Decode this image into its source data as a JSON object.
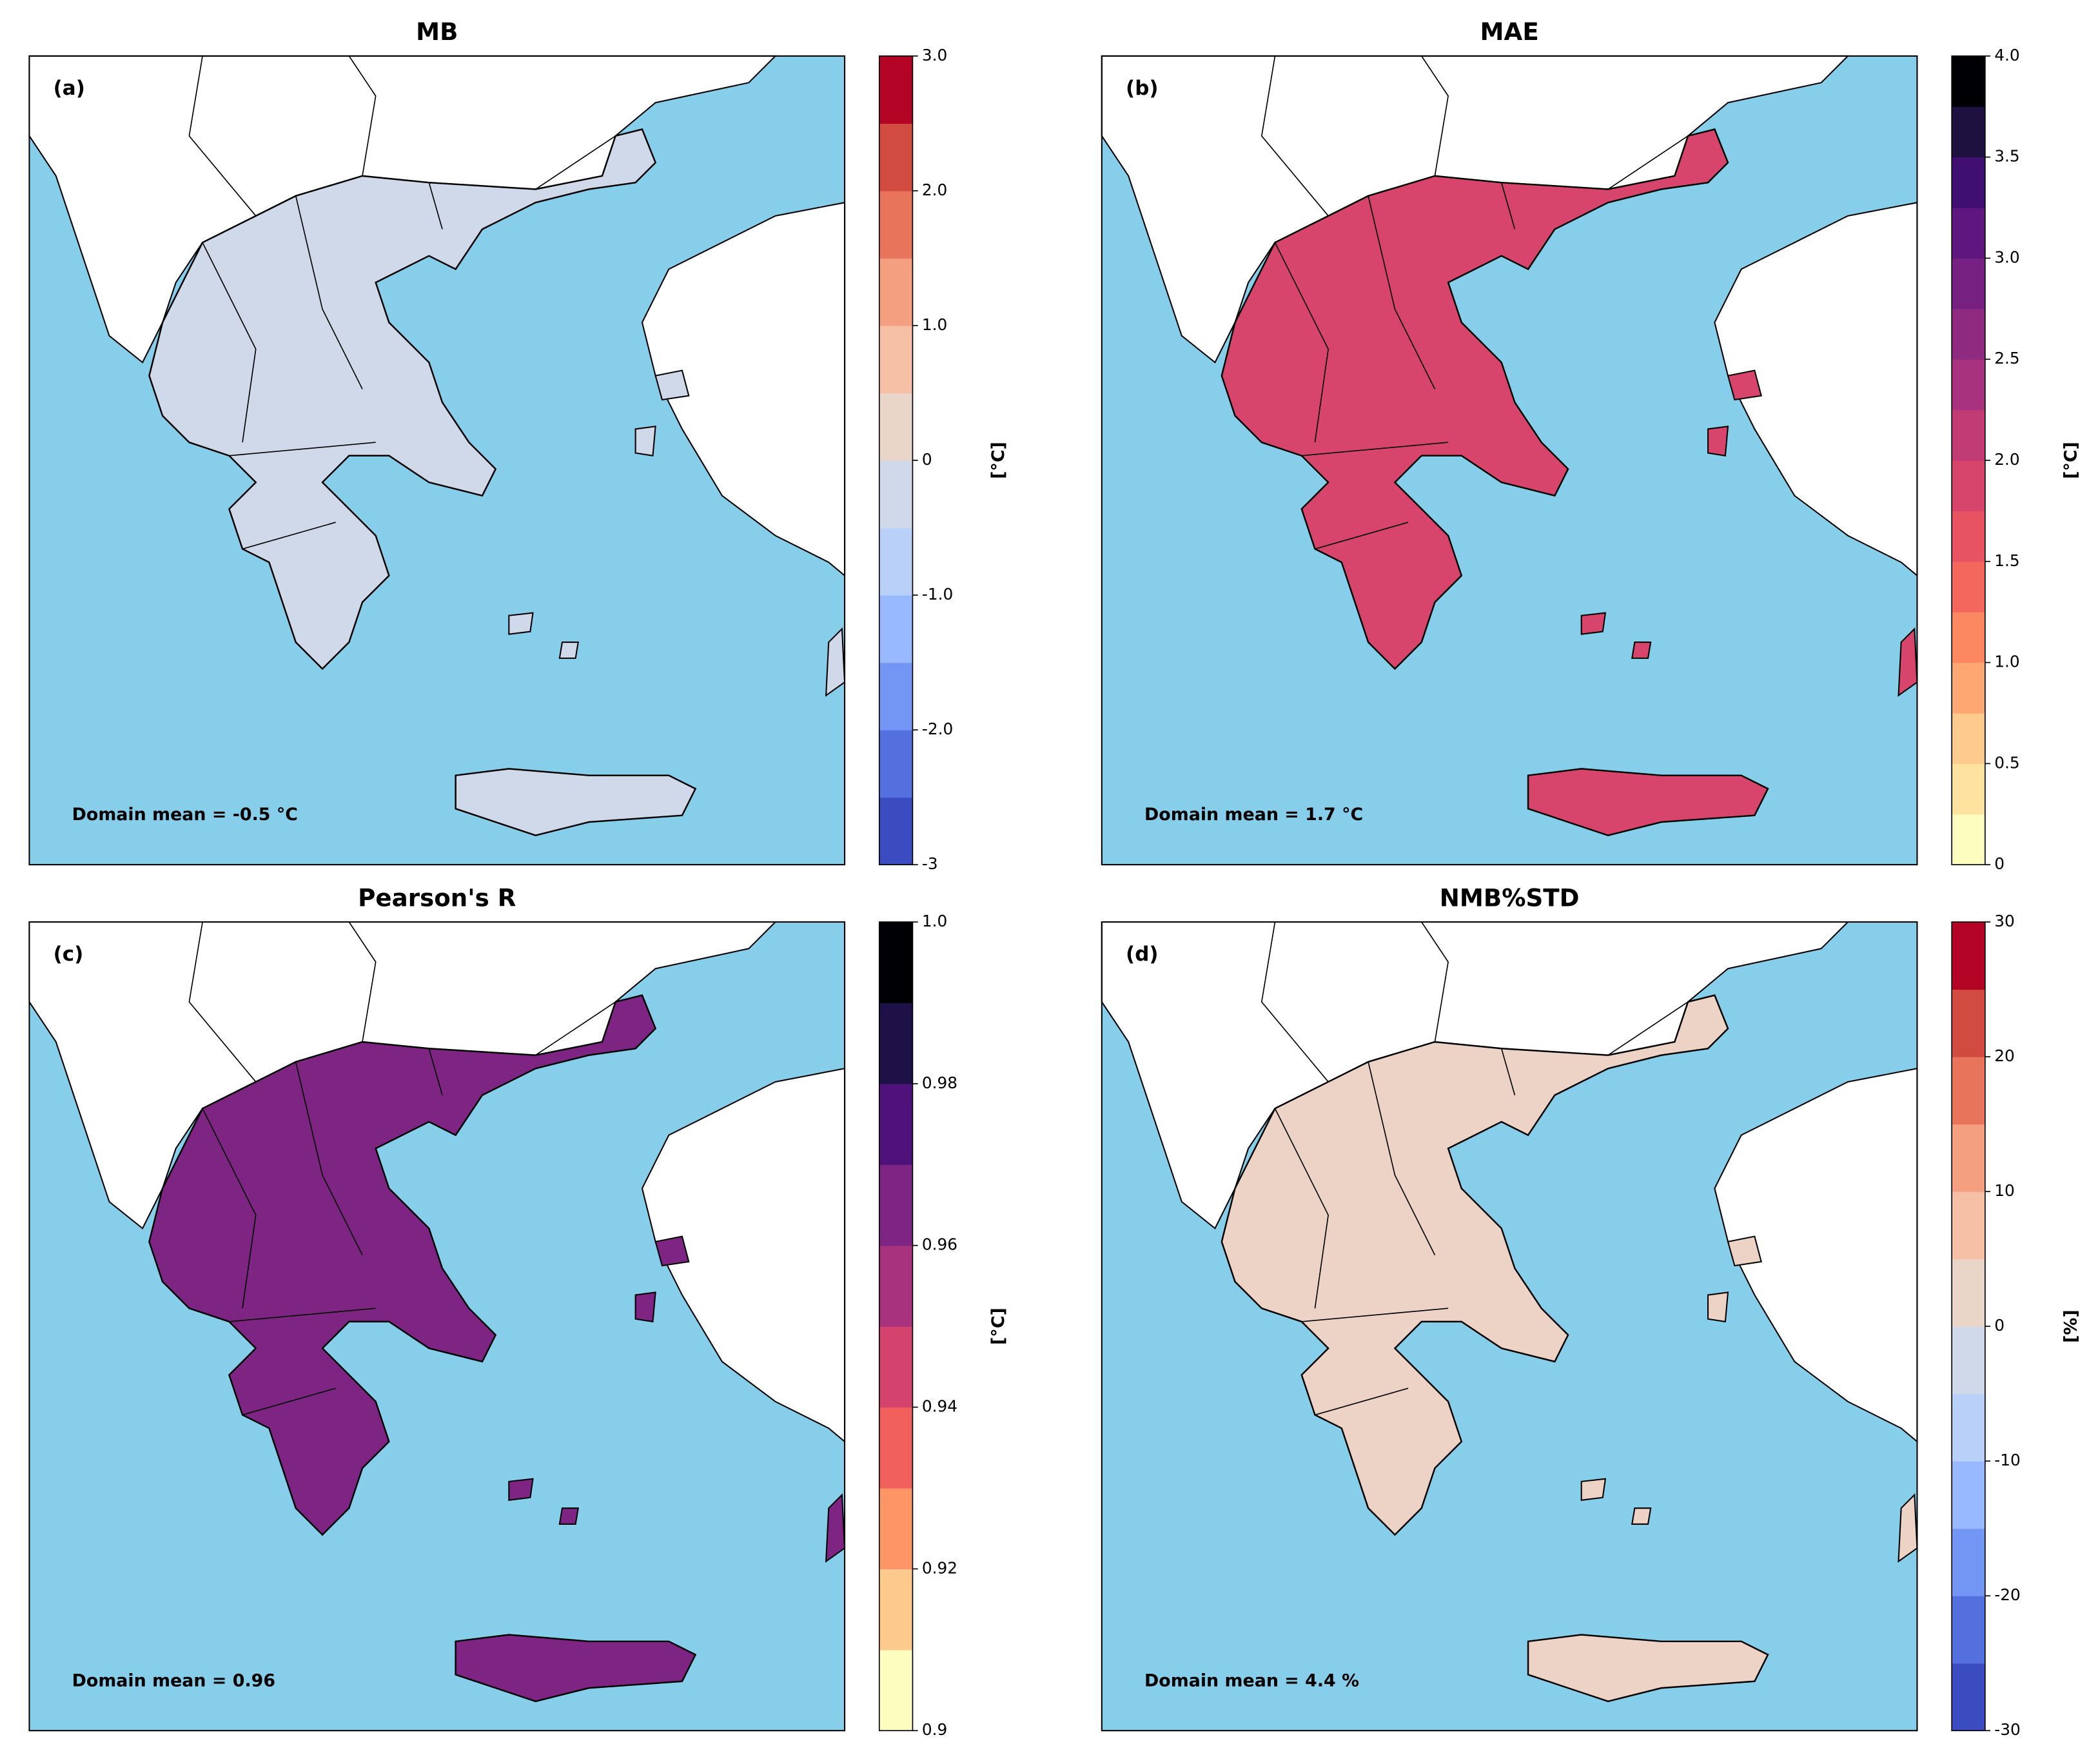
{
  "panels": [
    {
      "title": "MB",
      "label": "(a)",
      "domain_mean": "Domain mean = -0.5 °C",
      "unit": "[°C]",
      "colorbar": {
        "lim": [
          -3,
          3
        ],
        "ticks": [
          -3,
          {
            "value": -2,
            "label": "-2.0"
          },
          {
            "value": -1,
            "label": "-1.0"
          },
          0,
          {
            "value": 1,
            "label": "1.0"
          },
          {
            "value": 2,
            "label": "2.0"
          },
          {
            "value": 3,
            "label": "3.0"
          }
        ],
        "colors": [
          "#3b4cc0",
          "#5470de",
          "#7396f5",
          "#98b9ff",
          "#b9d0f9",
          "#cfd9ea",
          "#ead5c9",
          "#f5c0a6",
          "#f39f80",
          "#e7745b",
          "#d24b40",
          "#b40426"
        ]
      }
    },
    {
      "title": "MAE",
      "label": "(b)",
      "domain_mean": "Domain mean = 1.7 °C",
      "unit": "[°C]",
      "colorbar": {
        "lim": [
          0,
          4
        ],
        "ticks": [
          0,
          0.5,
          {
            "value": 1,
            "label": "1.0"
          },
          1.5,
          {
            "value": 2,
            "label": "2.0"
          },
          2.5,
          {
            "value": 3,
            "label": "3.0"
          },
          3.5,
          {
            "value": 4,
            "label": "4.0"
          }
        ],
        "colors": [
          "#fcfdbf",
          "#fde2a0",
          "#feca8d",
          "#fea772",
          "#fb8861",
          "#f4675c",
          "#e85362",
          "#d8456c",
          "#c13b75",
          "#a8327d",
          "#8f2a81",
          "#762181",
          "#5e177f",
          "#3f0f72",
          "#1e1140",
          "#000004"
        ]
      }
    },
    {
      "title": "Pearson's R",
      "label": "(c)",
      "domain_mean": "Domain mean = 0.96",
      "unit": "[°C]",
      "colorbar": {
        "lim": [
          0.9,
          1
        ],
        "ticks": [
          0.9,
          0.92,
          0.94,
          0.96,
          0.98,
          {
            "value": 1,
            "label": "1.0"
          }
        ],
        "colors": [
          "#fcfdbf",
          "#fec98d",
          "#fd9567",
          "#f1605d",
          "#d3436e",
          "#a8327d",
          "#7e2482",
          "#4f127b",
          "#1d1147",
          "#000004"
        ]
      }
    },
    {
      "title": "NMB%STD",
      "label": "(d)",
      "domain_mean": "Domain mean = 4.4 %",
      "unit": "[%]",
      "colorbar": {
        "lim": [
          -30,
          30
        ],
        "ticks": [
          -30,
          -20,
          -10,
          0,
          10,
          20,
          30
        ],
        "colors": [
          "#3b4cc0",
          "#5470de",
          "#7396f5",
          "#98b9ff",
          "#b9d0f9",
          "#cfd9ea",
          "#ead5c9",
          "#f5c0a6",
          "#f39f80",
          "#e7745b",
          "#d24b40",
          "#b40426"
        ]
      }
    }
  ]
}
